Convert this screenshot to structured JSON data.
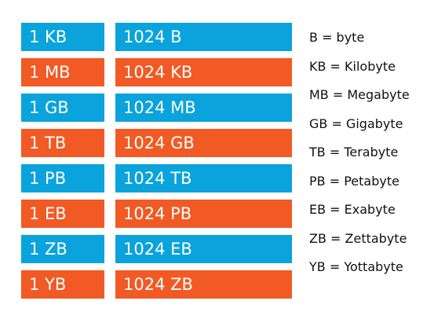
{
  "colors": {
    "blue": "#0aa3dc",
    "orange": "#f15a24"
  },
  "rows": [
    {
      "unit": "1 KB",
      "equals": "1024 B",
      "color": "blue"
    },
    {
      "unit": "1 MB",
      "equals": "1024 KB",
      "color": "orange"
    },
    {
      "unit": "1 GB",
      "equals": "1024 MB",
      "color": "blue"
    },
    {
      "unit": "1 TB",
      "equals": "1024 GB",
      "color": "orange"
    },
    {
      "unit": "1 PB",
      "equals": "1024 TB",
      "color": "blue"
    },
    {
      "unit": "1 EB",
      "equals": "1024 PB",
      "color": "orange"
    },
    {
      "unit": "1 ZB",
      "equals": "1024 EB",
      "color": "blue"
    },
    {
      "unit": "1 YB",
      "equals": "1024 ZB",
      "color": "orange"
    }
  ],
  "legend": [
    "B = byte",
    "KB = Kilobyte",
    "MB = Megabyte",
    "GB = Gigabyte",
    "TB = Terabyte",
    "PB = Petabyte",
    "EB = Exabyte",
    "ZB = Zettabyte",
    "YB = Yottabyte"
  ]
}
